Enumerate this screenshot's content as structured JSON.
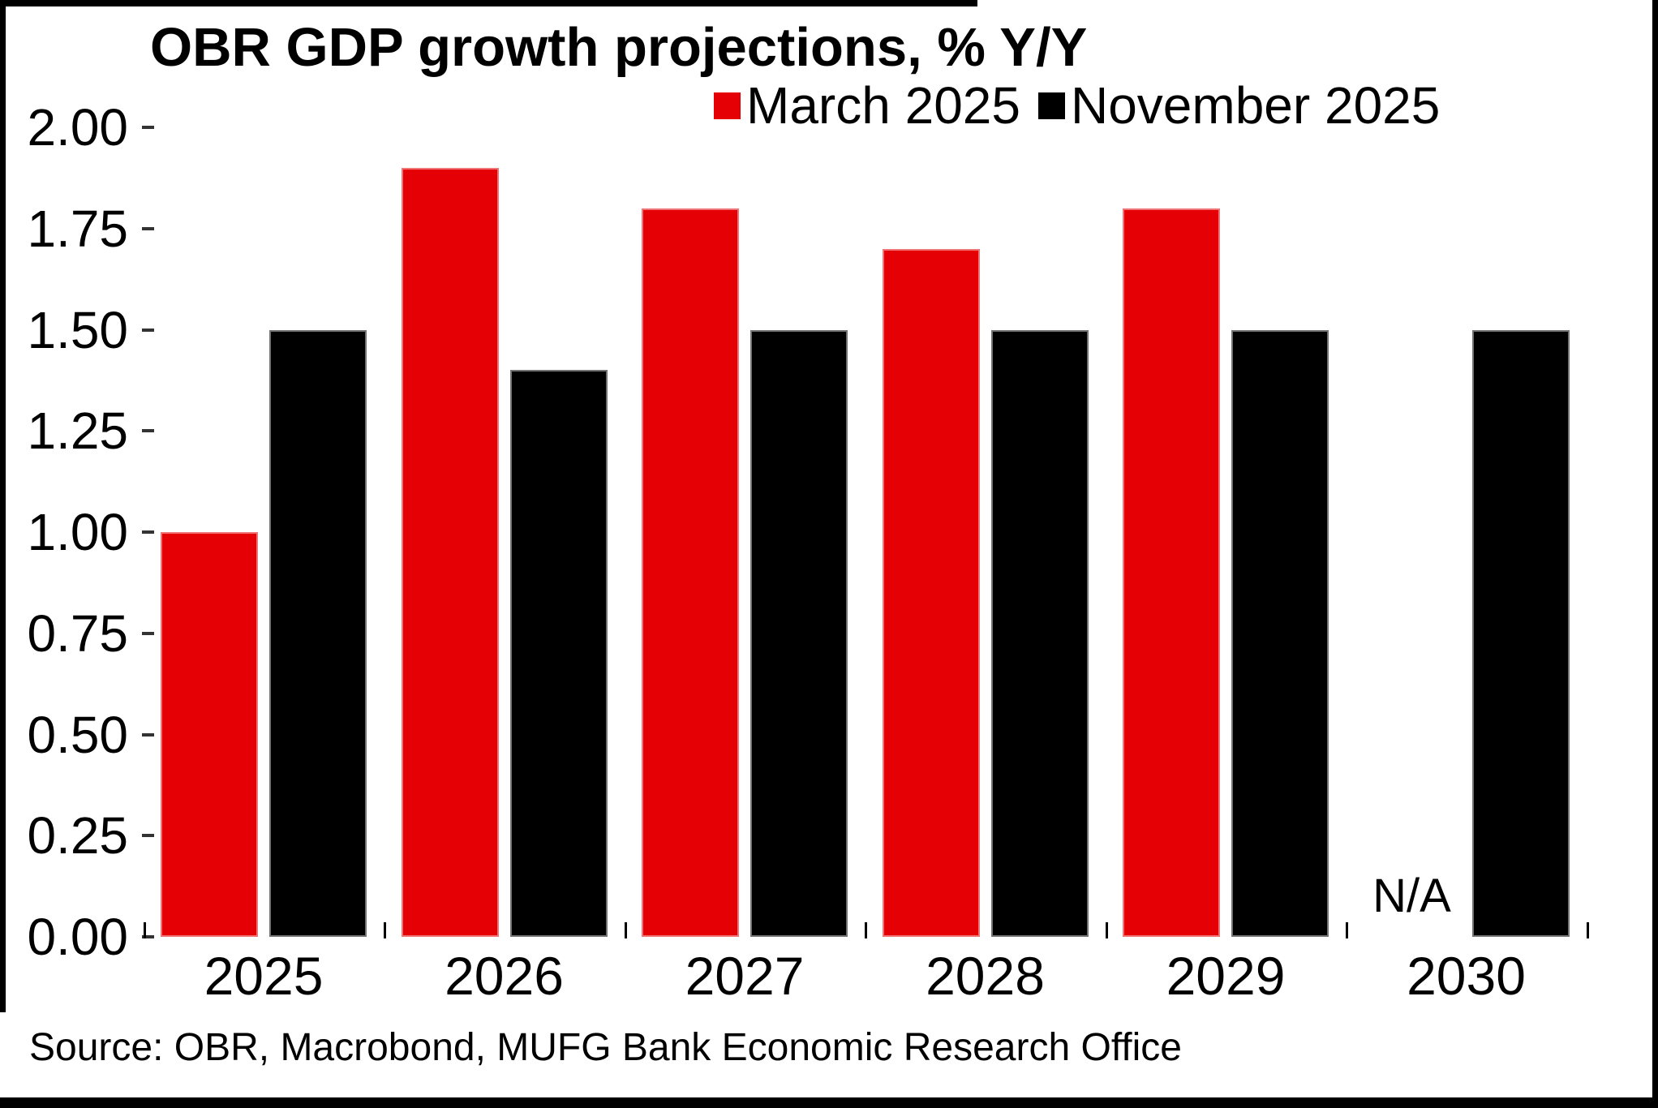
{
  "title": "OBR GDP growth projections, % Y/Y",
  "legend": {
    "items": [
      {
        "label": "March 2025",
        "color": "#e40005"
      },
      {
        "label": "November 2025",
        "color": "#000000"
      }
    ]
  },
  "chart_data": {
    "type": "bar",
    "title": "OBR GDP growth projections, % Y/Y",
    "categories": [
      "2025",
      "2026",
      "2027",
      "2028",
      "2029",
      "2030"
    ],
    "series": [
      {
        "name": "March 2025",
        "color": "#e40005",
        "values": [
          1.0,
          1.9,
          1.8,
          1.7,
          1.8,
          null
        ]
      },
      {
        "name": "November 2025",
        "color": "#000000",
        "values": [
          1.5,
          1.4,
          1.5,
          1.5,
          1.5,
          1.5
        ]
      }
    ],
    "missing_value_label": "N/A",
    "ylim": [
      0,
      2
    ],
    "y_tick_labels": [
      "2.00",
      "1.75",
      "1.50",
      "1.25",
      "1.00",
      "0.75",
      "0.50",
      "0.25",
      "0.00"
    ],
    "y_tick_step": 0.25,
    "grid": false,
    "legend_position": "top-right",
    "background": "#ffffff"
  },
  "source": "Source: OBR, Macrobond, MUFG Bank Economic Research Office"
}
